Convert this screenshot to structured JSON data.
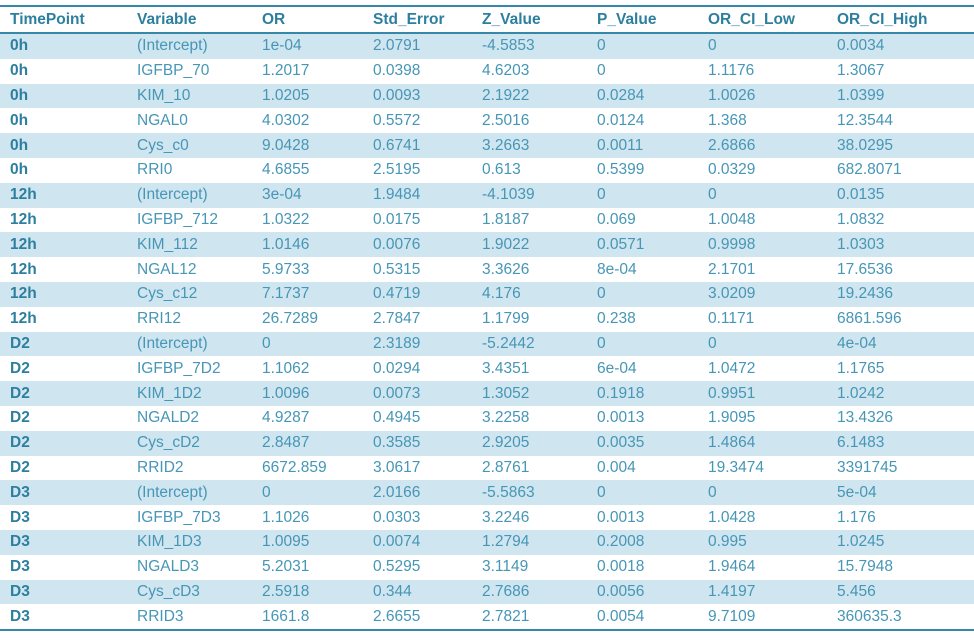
{
  "colors": {
    "accent": "#2d7f9f",
    "body_text": "#4696b6",
    "stripe": "#cfe5f0",
    "border": "#3588a8",
    "background": "#ffffff"
  },
  "table": {
    "headers": [
      "TimePoint",
      "Variable",
      "OR",
      "Std_Error",
      "Z_Value",
      "P_Value",
      "OR_CI_Low",
      "OR_CI_High"
    ],
    "rows": [
      [
        "0h",
        "(Intercept)",
        "1e-04",
        "2.0791",
        "-4.5853",
        "0",
        "0",
        "0.0034"
      ],
      [
        "0h",
        "IGFBP_70",
        "1.2017",
        "0.0398",
        "4.6203",
        "0",
        "1.1176",
        "1.3067"
      ],
      [
        "0h",
        "KIM_10",
        "1.0205",
        "0.0093",
        "2.1922",
        "0.0284",
        "1.0026",
        "1.0399"
      ],
      [
        "0h",
        "NGAL0",
        "4.0302",
        "0.5572",
        "2.5016",
        "0.0124",
        "1.368",
        "12.3544"
      ],
      [
        "0h",
        "Cys_c0",
        "9.0428",
        "0.6741",
        "3.2663",
        "0.0011",
        "2.6866",
        "38.0295"
      ],
      [
        "0h",
        "RRI0",
        "4.6855",
        "2.5195",
        "0.613",
        "0.5399",
        "0.0329",
        "682.8071"
      ],
      [
        "12h",
        "(Intercept)",
        "3e-04",
        "1.9484",
        "-4.1039",
        "0",
        "0",
        "0.0135"
      ],
      [
        "12h",
        "IGFBP_712",
        "1.0322",
        "0.0175",
        "1.8187",
        "0.069",
        "1.0048",
        "1.0832"
      ],
      [
        "12h",
        "KIM_112",
        "1.0146",
        "0.0076",
        "1.9022",
        "0.0571",
        "0.9998",
        "1.0303"
      ],
      [
        "12h",
        "NGAL12",
        "5.9733",
        "0.5315",
        "3.3626",
        "8e-04",
        "2.1701",
        "17.6536"
      ],
      [
        "12h",
        "Cys_c12",
        "7.1737",
        "0.4719",
        "4.176",
        "0",
        "3.0209",
        "19.2436"
      ],
      [
        "12h",
        "RRI12",
        "26.7289",
        "2.7847",
        "1.1799",
        "0.238",
        "0.1171",
        "6861.596"
      ],
      [
        "D2",
        "(Intercept)",
        "0",
        "2.3189",
        "-5.2442",
        "0",
        "0",
        "4e-04"
      ],
      [
        "D2",
        "IGFBP_7D2",
        "1.1062",
        "0.0294",
        "3.4351",
        "6e-04",
        "1.0472",
        "1.1765"
      ],
      [
        "D2",
        "KIM_1D2",
        "1.0096",
        "0.0073",
        "1.3052",
        "0.1918",
        "0.9951",
        "1.0242"
      ],
      [
        "D2",
        "NGALD2",
        "4.9287",
        "0.4945",
        "3.2258",
        "0.0013",
        "1.9095",
        "13.4326"
      ],
      [
        "D2",
        "Cys_cD2",
        "2.8487",
        "0.3585",
        "2.9205",
        "0.0035",
        "1.4864",
        "6.1483"
      ],
      [
        "D2",
        "RRID2",
        "6672.859",
        "3.0617",
        "2.8761",
        "0.004",
        "19.3474",
        "3391745"
      ],
      [
        "D3",
        "(Intercept)",
        "0",
        "2.0166",
        "-5.5863",
        "0",
        "0",
        "5e-04"
      ],
      [
        "D3",
        "IGFBP_7D3",
        "1.1026",
        "0.0303",
        "3.2246",
        "0.0013",
        "1.0428",
        "1.176"
      ],
      [
        "D3",
        "KIM_1D3",
        "1.0095",
        "0.0074",
        "1.2794",
        "0.2008",
        "0.995",
        "1.0245"
      ],
      [
        "D3",
        "NGALD3",
        "5.2031",
        "0.5295",
        "3.1149",
        "0.0018",
        "1.9464",
        "15.7948"
      ],
      [
        "D3",
        "Cys_cD3",
        "2.5918",
        "0.344",
        "2.7686",
        "0.0056",
        "1.4197",
        "5.456"
      ],
      [
        "D3",
        "RRID3",
        "1661.8",
        "2.6655",
        "2.7821",
        "0.0054",
        "9.7109",
        "360635.3"
      ]
    ]
  }
}
